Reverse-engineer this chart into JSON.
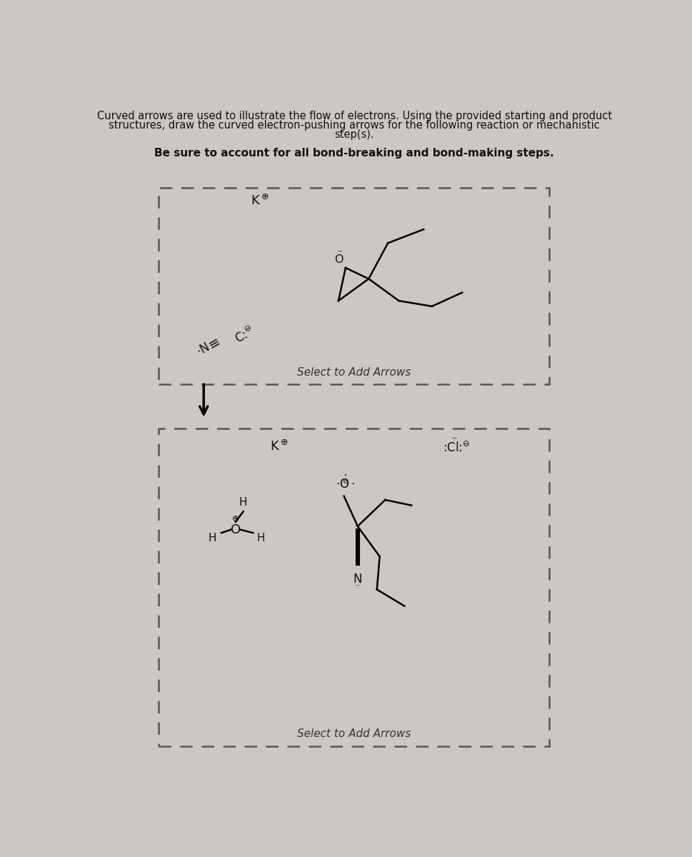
{
  "title_line1": "Curved arrows are used to illustrate the flow of electrons. Using the provided starting and product",
  "title_line2": "structures, draw the curved electron-pushing arrows for the following reaction or mechanistic",
  "title_line3": "step(s).",
  "subtitle": "Be sure to account for all bond-breaking and bond-making steps.",
  "bg_color": "#cbc7c3",
  "box_bg": "#cbc7c3",
  "text_color": "#111111",
  "select_text": "Select to Add Arrows"
}
